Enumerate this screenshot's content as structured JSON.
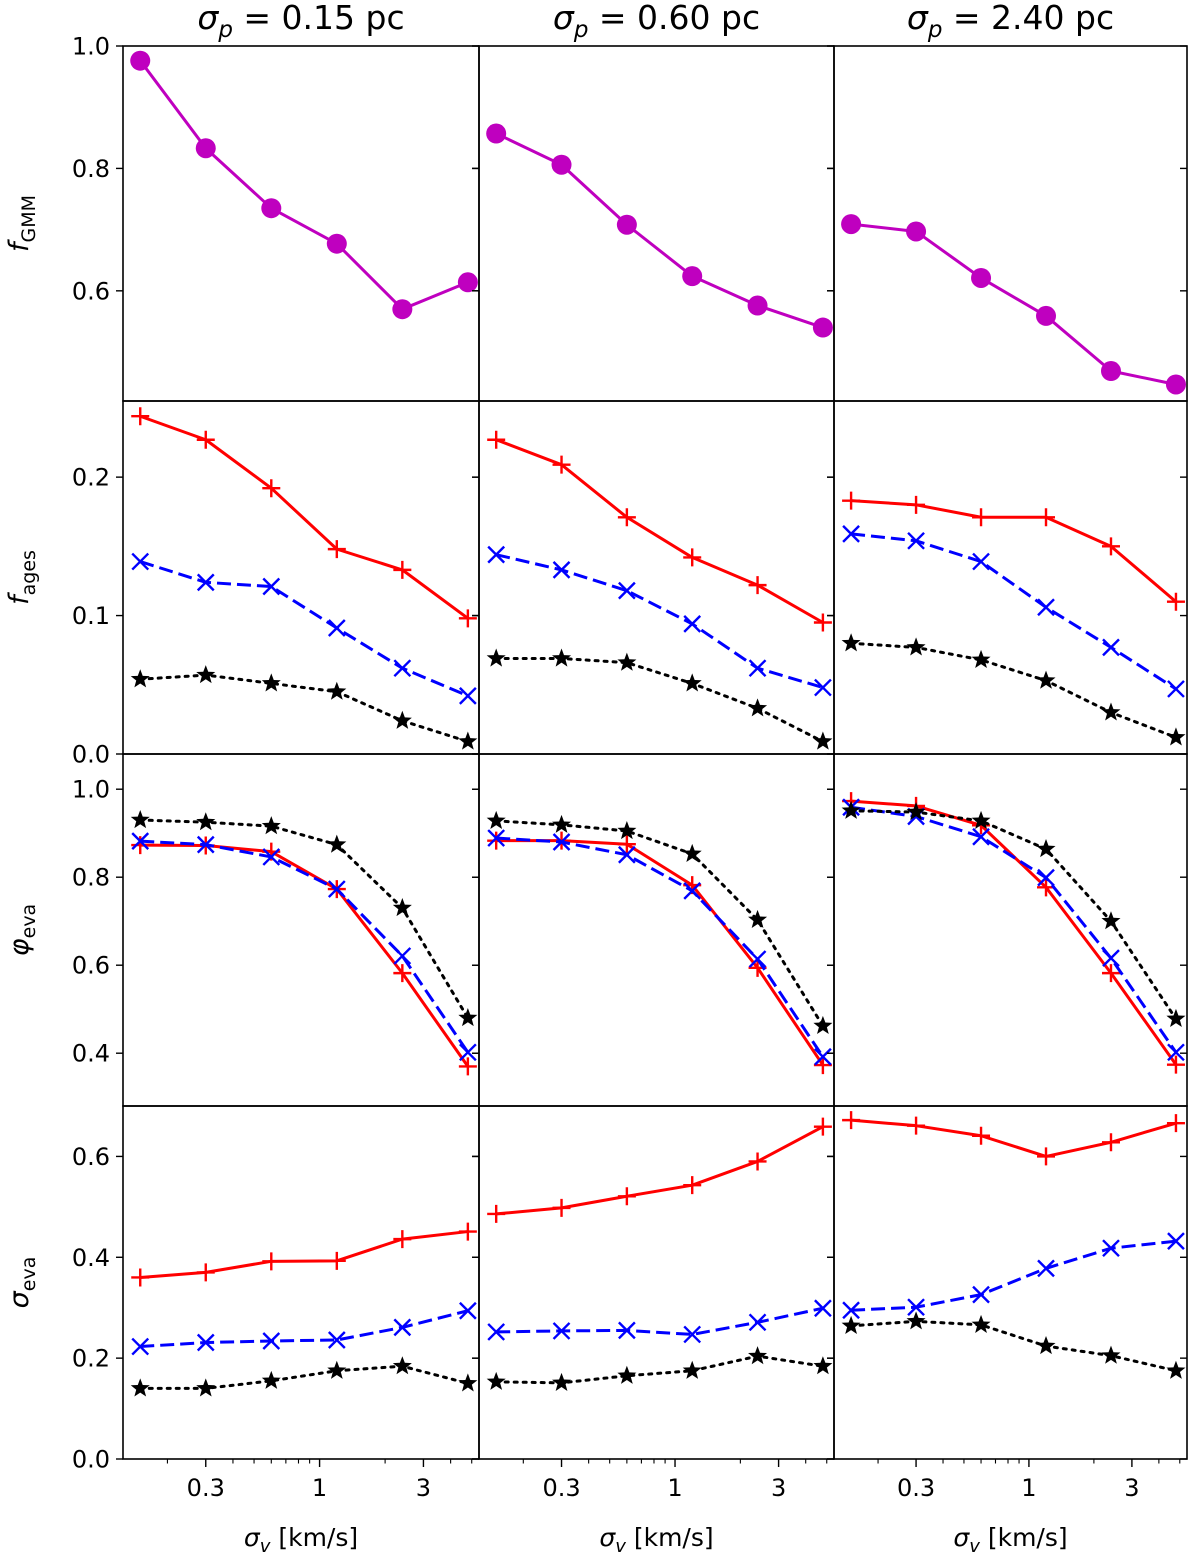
{
  "chart_data": {
    "type": "line",
    "layout": "grid-4x3",
    "x_axis": {
      "label_symbol": "σ",
      "label_sub": "v",
      "label_rest": " [km/s]",
      "scale": "log",
      "ticks": [
        {
          "value": 0.3,
          "label": "0.3"
        },
        {
          "value": 1,
          "label": "1"
        },
        {
          "value": 3,
          "label": "3"
        }
      ],
      "xlim": [
        0.125,
        5.4
      ]
    },
    "x_values": [
      0.15,
      0.3,
      0.6,
      1.2,
      2.4,
      4.8
    ],
    "columns": [
      {
        "title_symbol": "σ",
        "title_sub": "p",
        "title_value": " = 0.15 pc"
      },
      {
        "title_symbol": "σ",
        "title_sub": "p",
        "title_value": " = 0.60 pc"
      },
      {
        "title_symbol": "σ",
        "title_sub": "p",
        "title_value": " = 2.40 pc"
      }
    ],
    "rows": [
      {
        "id": "fGMM",
        "ylabel_main": "f",
        "ylabel_main_italic": true,
        "ylabel_sub": "GMM",
        "ylim": [
          0.42,
          1.0
        ],
        "yticks": [
          {
            "value": 0.6,
            "label": "0.6"
          },
          {
            "value": 0.8,
            "label": "0.8"
          },
          {
            "value": 1.0,
            "label": "1.0"
          }
        ],
        "series": [
          {
            "name": "GMM",
            "color": "#bf00bf",
            "dash": "solid",
            "marker": "circle",
            "values": [
              [
                0.976,
                0.833,
                0.735,
                0.677,
                0.57,
                0.614
              ],
              [
                0.857,
                0.806,
                0.708,
                0.624,
                0.576,
                0.54
              ],
              [
                0.709,
                0.697,
                0.621,
                0.559,
                0.469,
                0.447
              ]
            ]
          }
        ]
      },
      {
        "id": "fages",
        "ylabel_main": "f",
        "ylabel_main_italic": true,
        "ylabel_sub": "ages",
        "ylim": [
          0.0,
          0.255
        ],
        "yticks": [
          {
            "value": 0.0,
            "label": "0.0"
          },
          {
            "value": 0.1,
            "label": "0.1"
          },
          {
            "value": 0.2,
            "label": "0.2"
          }
        ],
        "series": [
          {
            "name": "red",
            "color": "#ff0000",
            "dash": "solid",
            "marker": "plus",
            "values": [
              [
                0.244,
                0.227,
                0.192,
                0.148,
                0.133,
                0.098
              ],
              [
                0.227,
                0.209,
                0.171,
                0.142,
                0.122,
                0.095
              ],
              [
                0.183,
                0.18,
                0.171,
                0.171,
                0.15,
                0.11
              ]
            ]
          },
          {
            "name": "blue",
            "color": "#0000ff",
            "dash": "dashed",
            "marker": "x",
            "values": [
              [
                0.139,
                0.124,
                0.121,
                0.091,
                0.062,
                0.042
              ],
              [
                0.144,
                0.133,
                0.118,
                0.094,
                0.062,
                0.048
              ],
              [
                0.159,
                0.154,
                0.139,
                0.106,
                0.077,
                0.047
              ]
            ]
          },
          {
            "name": "black",
            "color": "#000000",
            "dash": "dotted",
            "marker": "star",
            "values": [
              [
                0.054,
                0.057,
                0.051,
                0.045,
                0.024,
                0.009
              ],
              [
                0.069,
                0.069,
                0.066,
                0.051,
                0.033,
                0.009
              ],
              [
                0.08,
                0.077,
                0.068,
                0.053,
                0.03,
                0.012
              ]
            ]
          }
        ]
      },
      {
        "id": "phi_eva",
        "ylabel_main": "φ",
        "ylabel_main_italic": true,
        "ylabel_sub": "eva",
        "ylim": [
          0.28,
          1.08
        ],
        "yticks": [
          {
            "value": 0.4,
            "label": "0.4"
          },
          {
            "value": 0.6,
            "label": "0.6"
          },
          {
            "value": 0.8,
            "label": "0.8"
          },
          {
            "value": 1.0,
            "label": "1.0"
          }
        ],
        "series": [
          {
            "name": "red",
            "color": "#ff0000",
            "dash": "solid",
            "marker": "plus",
            "values": [
              [
                0.873,
                0.872,
                0.858,
                0.773,
                0.582,
                0.37
              ],
              [
                0.883,
                0.883,
                0.875,
                0.782,
                0.594,
                0.373
              ],
              [
                0.973,
                0.962,
                0.918,
                0.777,
                0.582,
                0.374
              ]
            ]
          },
          {
            "name": "blue",
            "color": "#0000ff",
            "dash": "dashed",
            "marker": "x",
            "values": [
              [
                0.882,
                0.874,
                0.846,
                0.773,
                0.621,
                0.402
              ],
              [
                0.889,
                0.88,
                0.851,
                0.769,
                0.614,
                0.392
              ],
              [
                0.959,
                0.938,
                0.892,
                0.799,
                0.616,
                0.402
              ]
            ]
          },
          {
            "name": "black",
            "color": "#000000",
            "dash": "dotted",
            "marker": "star",
            "values": [
              [
                0.93,
                0.925,
                0.916,
                0.874,
                0.73,
                0.48
              ],
              [
                0.928,
                0.919,
                0.905,
                0.853,
                0.703,
                0.462
              ],
              [
                0.951,
                0.948,
                0.928,
                0.864,
                0.7,
                0.478
              ]
            ]
          }
        ]
      },
      {
        "id": "sigma_eva",
        "ylabel_main": "σ",
        "ylabel_main_italic": true,
        "ylabel_sub": "eva",
        "ylim": [
          0.0,
          0.7
        ],
        "yticks": [
          {
            "value": 0.0,
            "label": "0.0"
          },
          {
            "value": 0.2,
            "label": "0.2"
          },
          {
            "value": 0.4,
            "label": "0.4"
          },
          {
            "value": 0.6,
            "label": "0.6"
          }
        ],
        "series": [
          {
            "name": "red",
            "color": "#ff0000",
            "dash": "solid",
            "marker": "plus",
            "values": [
              [
                0.36,
                0.37,
                0.392,
                0.393,
                0.436,
                0.451
              ],
              [
                0.486,
                0.498,
                0.521,
                0.543,
                0.59,
                0.659
              ],
              [
                0.672,
                0.661,
                0.641,
                0.6,
                0.628,
                0.666
              ]
            ]
          },
          {
            "name": "blue",
            "color": "#0000ff",
            "dash": "dashed",
            "marker": "x",
            "values": [
              [
                0.223,
                0.231,
                0.234,
                0.236,
                0.261,
                0.294
              ],
              [
                0.252,
                0.254,
                0.255,
                0.247,
                0.271,
                0.299
              ],
              [
                0.295,
                0.301,
                0.326,
                0.378,
                0.418,
                0.432
              ]
            ]
          },
          {
            "name": "black",
            "color": "#000000",
            "dash": "dotted",
            "marker": "star",
            "values": [
              [
                0.14,
                0.14,
                0.155,
                0.175,
                0.184,
                0.15
              ],
              [
                0.153,
                0.151,
                0.165,
                0.175,
                0.204,
                0.184
              ],
              [
                0.264,
                0.273,
                0.266,
                0.224,
                0.205,
                0.175
              ]
            ]
          }
        ]
      }
    ]
  }
}
